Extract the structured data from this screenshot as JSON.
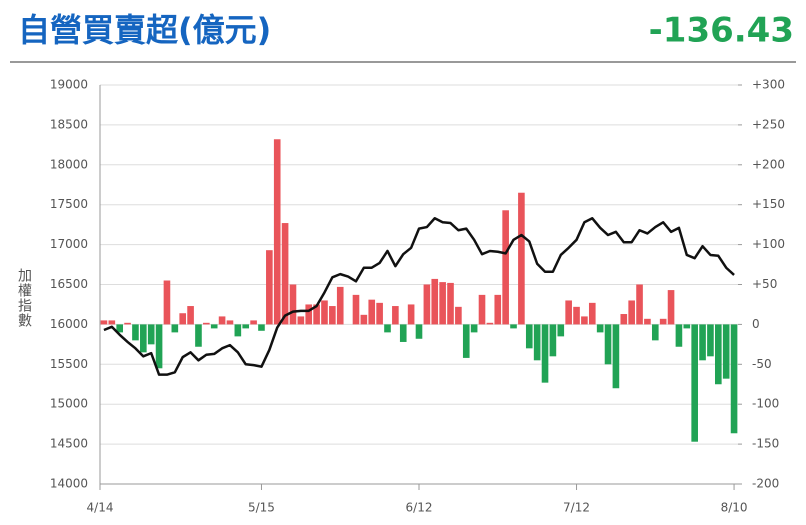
{
  "chart_data": {
    "type": "combo",
    "title": "自營買賣超(億元)",
    "headline_value": -136.43,
    "ylabel": "加權指數",
    "categories": [
      "4/14",
      null,
      null,
      null,
      null,
      null,
      null,
      null,
      null,
      null,
      null,
      null,
      null,
      null,
      null,
      null,
      null,
      null,
      null,
      null,
      "5/15",
      null,
      null,
      null,
      null,
      null,
      null,
      null,
      null,
      null,
      null,
      null,
      null,
      null,
      null,
      null,
      null,
      null,
      null,
      null,
      "6/12",
      null,
      null,
      null,
      null,
      null,
      null,
      null,
      null,
      null,
      null,
      null,
      null,
      null,
      null,
      null,
      null,
      null,
      null,
      null,
      "7/12",
      null,
      null,
      null,
      null,
      null,
      null,
      null,
      null,
      null,
      null,
      null,
      null,
      null,
      null,
      null,
      null,
      null,
      null,
      null,
      "8/10"
    ],
    "ylim": [
      14000,
      19000
    ],
    "yticks": [
      14000,
      14500,
      15000,
      15500,
      16000,
      16500,
      17000,
      17500,
      18000,
      18500,
      19000
    ],
    "y2lim": [
      -200,
      300
    ],
    "y2ticks": [
      {
        "value": -200,
        "label": "-200"
      },
      {
        "value": -150,
        "label": "-150"
      },
      {
        "value": -100,
        "label": "-100"
      },
      {
        "value": -50,
        "label": "-50"
      },
      0,
      {
        "value": 50,
        "label": "+50"
      },
      {
        "value": 100,
        "label": "+100"
      },
      {
        "value": 150,
        "label": "+150"
      },
      {
        "value": 200,
        "label": "+200"
      },
      {
        "value": 250,
        "label": "+250"
      },
      {
        "value": 300,
        "label": "+300"
      }
    ],
    "grid": true,
    "series": [
      {
        "type": "bar",
        "axis": "y2",
        "up_color": "#e9545a",
        "down_color": "#21a355",
        "values": [
          5,
          5,
          -10,
          2,
          -20,
          -35,
          -25,
          -55,
          55,
          -10,
          14,
          23,
          -28,
          2,
          -5,
          10,
          5,
          -15,
          -5,
          5,
          -8,
          93,
          232,
          127,
          50,
          10,
          25,
          25,
          30,
          23,
          47,
          0,
          37,
          12,
          31,
          27,
          -10,
          23,
          -22,
          25,
          -18,
          50,
          57,
          53,
          52,
          22,
          -42,
          -10,
          37,
          2,
          37,
          143,
          -5,
          165,
          -30,
          -45,
          -73,
          -40,
          -15,
          30,
          22,
          10,
          27,
          -10,
          -50,
          -80,
          13,
          30,
          50,
          7,
          -20,
          7,
          43,
          -28,
          -5,
          -147,
          -45,
          -40,
          -75,
          -68,
          -136.43
        ]
      },
      {
        "type": "line",
        "axis": "y",
        "color": "#111111",
        "values": [
          15930,
          15970,
          15870,
          15780,
          15700,
          15600,
          15640,
          15370,
          15370,
          15400,
          15590,
          15650,
          15550,
          15620,
          15630,
          15700,
          15740,
          15650,
          15500,
          15490,
          15470,
          15680,
          15960,
          16110,
          16160,
          16170,
          16170,
          16230,
          16400,
          16590,
          16630,
          16600,
          16540,
          16710,
          16710,
          16770,
          16920,
          16730,
          16880,
          16960,
          17200,
          17220,
          17330,
          17280,
          17270,
          17180,
          17200,
          17060,
          16880,
          16920,
          16910,
          16890,
          17060,
          17120,
          17040,
          16760,
          16660,
          16660,
          16870,
          16960,
          17060,
          17280,
          17330,
          17210,
          17120,
          17160,
          17030,
          17030,
          17180,
          17140,
          17220,
          17280,
          17160,
          17210,
          16870,
          16830,
          16980,
          16870,
          16860,
          16710,
          16620
        ]
      }
    ]
  }
}
